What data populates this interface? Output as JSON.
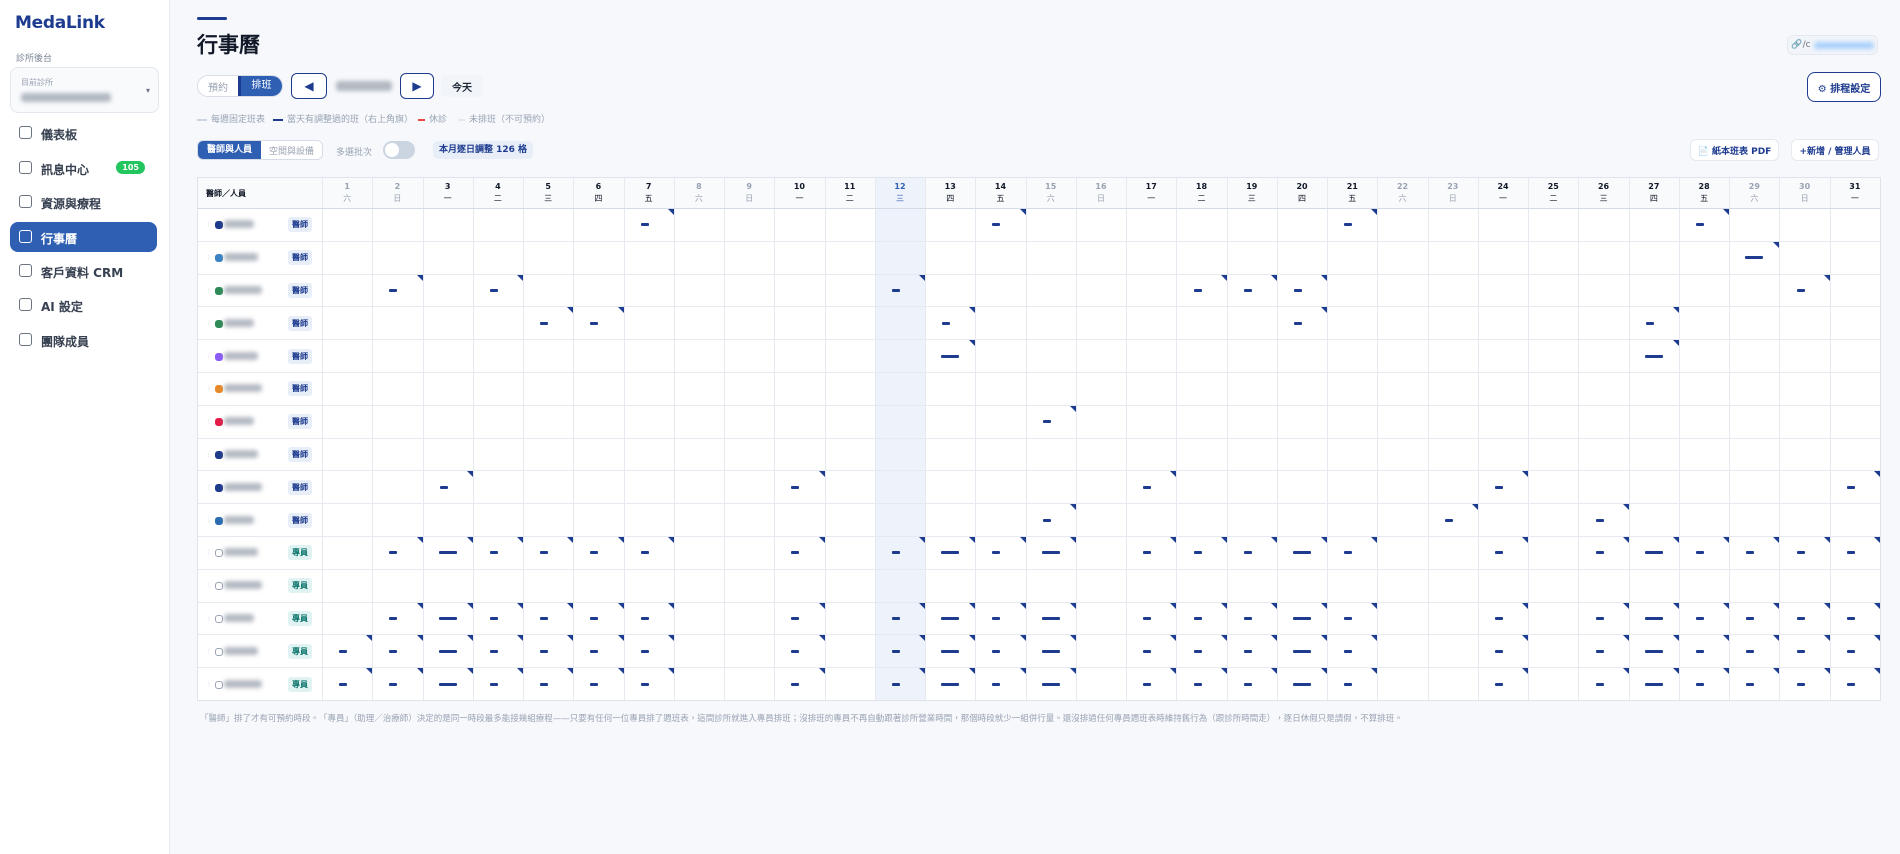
{
  "sidebar": {
    "brand": "MedaLink",
    "section": "診所後台",
    "select_label": "目前診所",
    "nav": [
      {
        "label": "儀表板"
      },
      {
        "label": "訊息中心",
        "badge": "105"
      },
      {
        "label": "資源與療程"
      },
      {
        "label": "行事曆",
        "active": true
      },
      {
        "label": "客戶資料 CRM"
      },
      {
        "label": "AI 設定"
      },
      {
        "label": "團隊成員"
      }
    ]
  },
  "header": {
    "title": "行事曆",
    "mode_tabs": [
      "預約",
      "排班"
    ],
    "today": "今天",
    "settings": "⚙ 排程設定"
  },
  "legend": [
    "每週固定班表",
    "當天有調整過的班（右上角旗）",
    "休診",
    "未排班（不可預約）"
  ],
  "toolbar": {
    "tabs": [
      "醫師與人員",
      "空間與設備"
    ],
    "batch": "多選批次",
    "adjust_chip": "本月逐日調整 126 格",
    "pdf": "📄 紙本班表 PDF",
    "manage": "+新增 / 管理人員"
  },
  "grid": {
    "corner": "醫師／人員",
    "days": [
      [
        "1",
        "六"
      ],
      [
        "2",
        "日"
      ],
      [
        "3",
        "一"
      ],
      [
        "4",
        "二"
      ],
      [
        "5",
        "三"
      ],
      [
        "6",
        "四"
      ],
      [
        "7",
        "五"
      ],
      [
        "8",
        "六"
      ],
      [
        "9",
        "日"
      ],
      [
        "10",
        "一"
      ],
      [
        "11",
        "二"
      ],
      [
        "12",
        "三"
      ],
      [
        "13",
        "四"
      ],
      [
        "14",
        "五"
      ],
      [
        "15",
        "六"
      ],
      [
        "16",
        "日"
      ],
      [
        "17",
        "一"
      ],
      [
        "18",
        "二"
      ],
      [
        "19",
        "三"
      ],
      [
        "20",
        "四"
      ],
      [
        "21",
        "五"
      ],
      [
        "22",
        "六"
      ],
      [
        "23",
        "日"
      ],
      [
        "24",
        "一"
      ],
      [
        "25",
        "二"
      ],
      [
        "26",
        "三"
      ],
      [
        "27",
        "四"
      ],
      [
        "28",
        "五"
      ],
      [
        "29",
        "六"
      ],
      [
        "30",
        "日"
      ],
      [
        "31",
        "一"
      ]
    ],
    "rows": [
      {
        "role": "醫師",
        "color": "#1e3a8a"
      },
      {
        "role": "醫師",
        "color": "#3b82c4"
      },
      {
        "role": "醫師",
        "color": "#2e8b57"
      },
      {
        "role": "醫師",
        "color": "#2e8b57"
      },
      {
        "role": "醫師",
        "color": "#8b5cf6"
      },
      {
        "role": "醫師",
        "color": "#e58a2b"
      },
      {
        "role": "醫師",
        "color": "#e11d48"
      },
      {
        "role": "醫師",
        "color": "#1e3a8a"
      },
      {
        "role": "醫師",
        "color": "#1e3a8a"
      },
      {
        "role": "醫師",
        "color": "#2b6cb0"
      },
      {
        "role": "專員",
        "color": "#ffffff"
      },
      {
        "role": "專員",
        "color": "#ffffff"
      },
      {
        "role": "專員",
        "color": "#ffffff"
      },
      {
        "role": "專員",
        "color": "#ffffff"
      },
      {
        "role": "專員",
        "color": "#ffffff"
      }
    ]
  },
  "footnote": "「醫師」排了才有可預約時段。「專員」（助理／治療師）決定的是同一時段最多能接幾組療程——只要有任何一位專員排了週班表，這間診所就進入專員排班；沒排班的專員不再自動跟著診所營業時間，那個時段就少一組併行量。還沒排過任何專員週班表時維持舊行為（跟診所時間走），逐日休假只是請假，不算排班。"
}
